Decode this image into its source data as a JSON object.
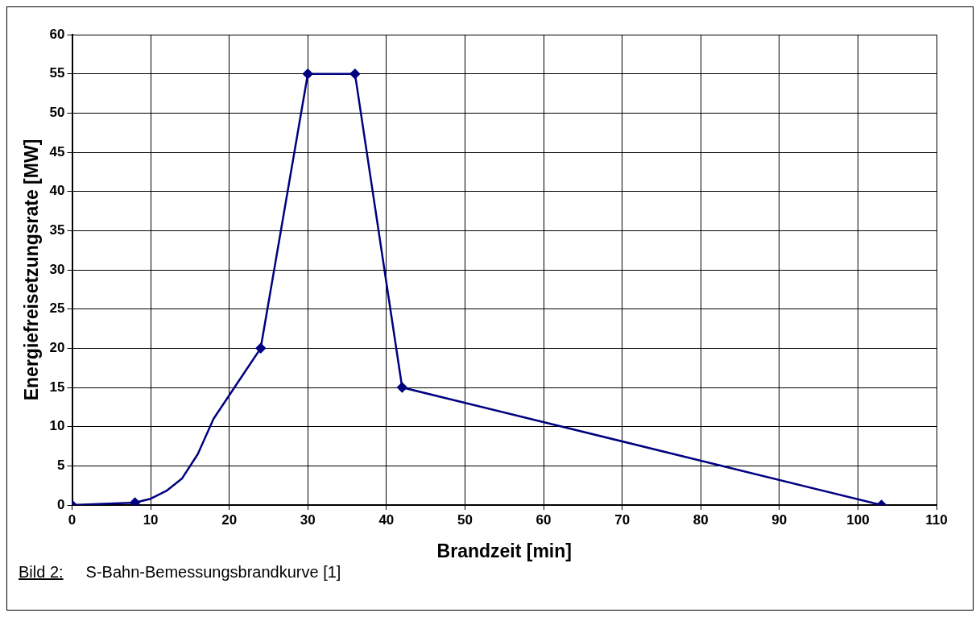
{
  "chart_data": {
    "type": "line",
    "xlabel": "Brandzeit [min]",
    "ylabel": "Energiefreisetzungsrate [MW]",
    "xlim": [
      0,
      110
    ],
    "xticks": [
      0,
      10,
      20,
      30,
      40,
      50,
      60,
      70,
      80,
      90,
      100,
      110
    ],
    "ylim": [
      0,
      60
    ],
    "yticks": [
      0,
      5,
      10,
      15,
      20,
      25,
      30,
      35,
      40,
      45,
      50,
      55,
      60
    ],
    "grid": true,
    "legend": false,
    "series": [
      {
        "color": "#000080",
        "marker": "none",
        "x": [
          0,
          8,
          10,
          12,
          14,
          16,
          18,
          20,
          22,
          24,
          30,
          36,
          42,
          103
        ],
        "values": [
          0,
          0.3,
          0.8,
          1.8,
          3.4,
          6.5,
          11,
          14,
          17,
          20,
          55,
          55,
          15,
          0
        ]
      },
      {
        "type": "scatter",
        "color": "#000080",
        "marker": "diamond",
        "x": [
          0,
          8,
          24,
          30,
          36,
          42,
          103
        ],
        "values": [
          0,
          0.3,
          20,
          55,
          55,
          15,
          0
        ]
      }
    ],
    "annotations": [
      "Bild 2:",
      "S-Bahn-Bemessungsbrandkurve [1]"
    ]
  }
}
